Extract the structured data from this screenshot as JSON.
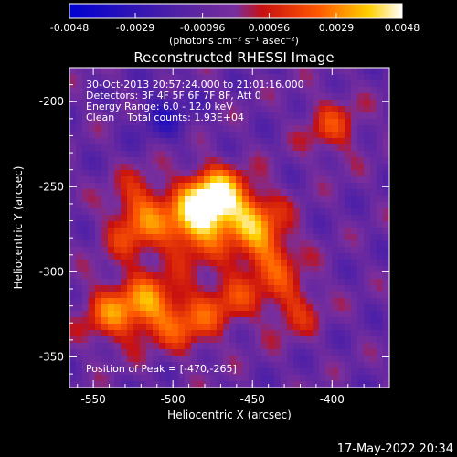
{
  "chart_data": {
    "type": "heatmap",
    "title": "Reconstructed RHESSI Image",
    "xlabel": "Heliocentric X (arcsec)",
    "ylabel": "Heliocentric Y (arcsec)",
    "xlim": [
      -565,
      -364
    ],
    "ylim": [
      -368,
      -180
    ],
    "x_ticks": [
      -550,
      -500,
      -450,
      -400
    ],
    "x_tick_labels": [
      "-550",
      "-500",
      "-450",
      "-400"
    ],
    "y_ticks": [
      -200,
      -250,
      -300,
      -350
    ],
    "y_tick_labels": [
      "-200",
      "-250",
      "-300",
      "-350"
    ],
    "colorbar": {
      "ticks": [
        -0.0048,
        -0.0029,
        -0.00096,
        0.00096,
        0.0029,
        0.0048
      ],
      "tick_labels": [
        "-0.0048",
        "-0.0029",
        "-0.00096",
        "0.00096",
        "0.0029",
        "0.0048"
      ],
      "unit_label": "(photons cm⁻² s⁻¹ asec⁻²)",
      "range": [
        -0.0048,
        0.0048
      ],
      "colors": [
        "#0000d0",
        "#4a1fa8",
        "#7a2e9c",
        "#c81010",
        "#ff5a00",
        "#ffd000",
        "#ffffff"
      ]
    },
    "annotations": [
      "30-Oct-2013 20:57:24.000 to 21:01:16.000",
      "Detectors: 3F 4F 5F 6F 7F 8F, Att 0",
      "Energy Range: 6.0 - 12.0 keV",
      "Clean    Total counts: 1.93E+04"
    ],
    "peak_label": "Position of Peak = [-470,-265]",
    "peak": {
      "x": -470,
      "y": -265
    },
    "sources": [
      {
        "x": -475,
        "y": -258,
        "amp": 1.0
      },
      {
        "x": -490,
        "y": -275,
        "amp": 0.55
      },
      {
        "x": -450,
        "y": -268,
        "amp": 0.5
      },
      {
        "x": -440,
        "y": -290,
        "amp": 0.45
      },
      {
        "x": -520,
        "y": -260,
        "amp": 0.4
      },
      {
        "x": -515,
        "y": -320,
        "amp": 0.55
      },
      {
        "x": -540,
        "y": -325,
        "amp": 0.45
      },
      {
        "x": -490,
        "y": -330,
        "amp": 0.4
      },
      {
        "x": -465,
        "y": -315,
        "amp": 0.35
      },
      {
        "x": -425,
        "y": -320,
        "amp": 0.35
      },
      {
        "x": -400,
        "y": -215,
        "amp": 0.35
      },
      {
        "x": -525,
        "y": -280,
        "amp": 0.3
      }
    ]
  },
  "timestamp": "17-May-2022 20:34"
}
